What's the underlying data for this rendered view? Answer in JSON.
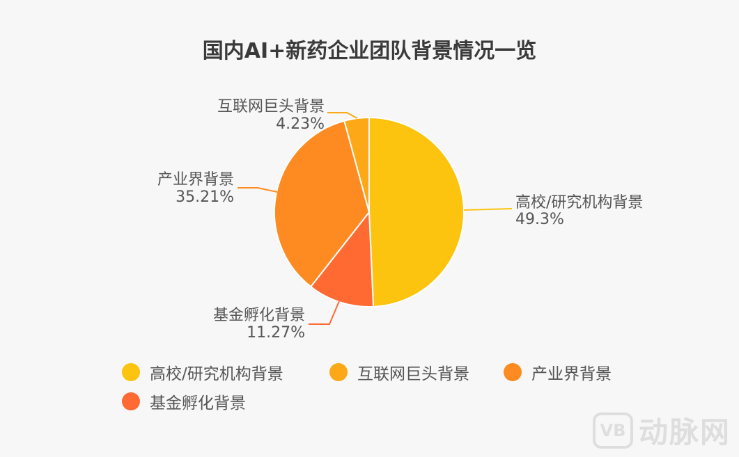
{
  "chart_data": {
    "type": "pie",
    "title": "国内AI+新药企业团队背景情况一览",
    "slices": [
      {
        "label": "高校/研究机构背景",
        "value": 49.3,
        "value_label": "49.3%",
        "color": "#fcc30f"
      },
      {
        "label": "基金孵化背景",
        "value": 11.27,
        "value_label": "11.27%",
        "color": "#ff6a33"
      },
      {
        "label": "产业界背景",
        "value": 35.21,
        "value_label": "35.21%",
        "color": "#fd8b21"
      },
      {
        "label": "互联网巨头背景",
        "value": 4.23,
        "value_label": "4.23%",
        "color": "#fca817"
      }
    ],
    "legend": [
      "高校/研究机构背景",
      "互联网巨头背景",
      "产业界背景",
      "基金孵化背景"
    ],
    "legend_colors": [
      "#fcc30f",
      "#fca817",
      "#fd8b21",
      "#ff6a33"
    ],
    "legend_placement": "bottom"
  },
  "watermark": {
    "logo": "VB",
    "text": "动脉网"
  }
}
